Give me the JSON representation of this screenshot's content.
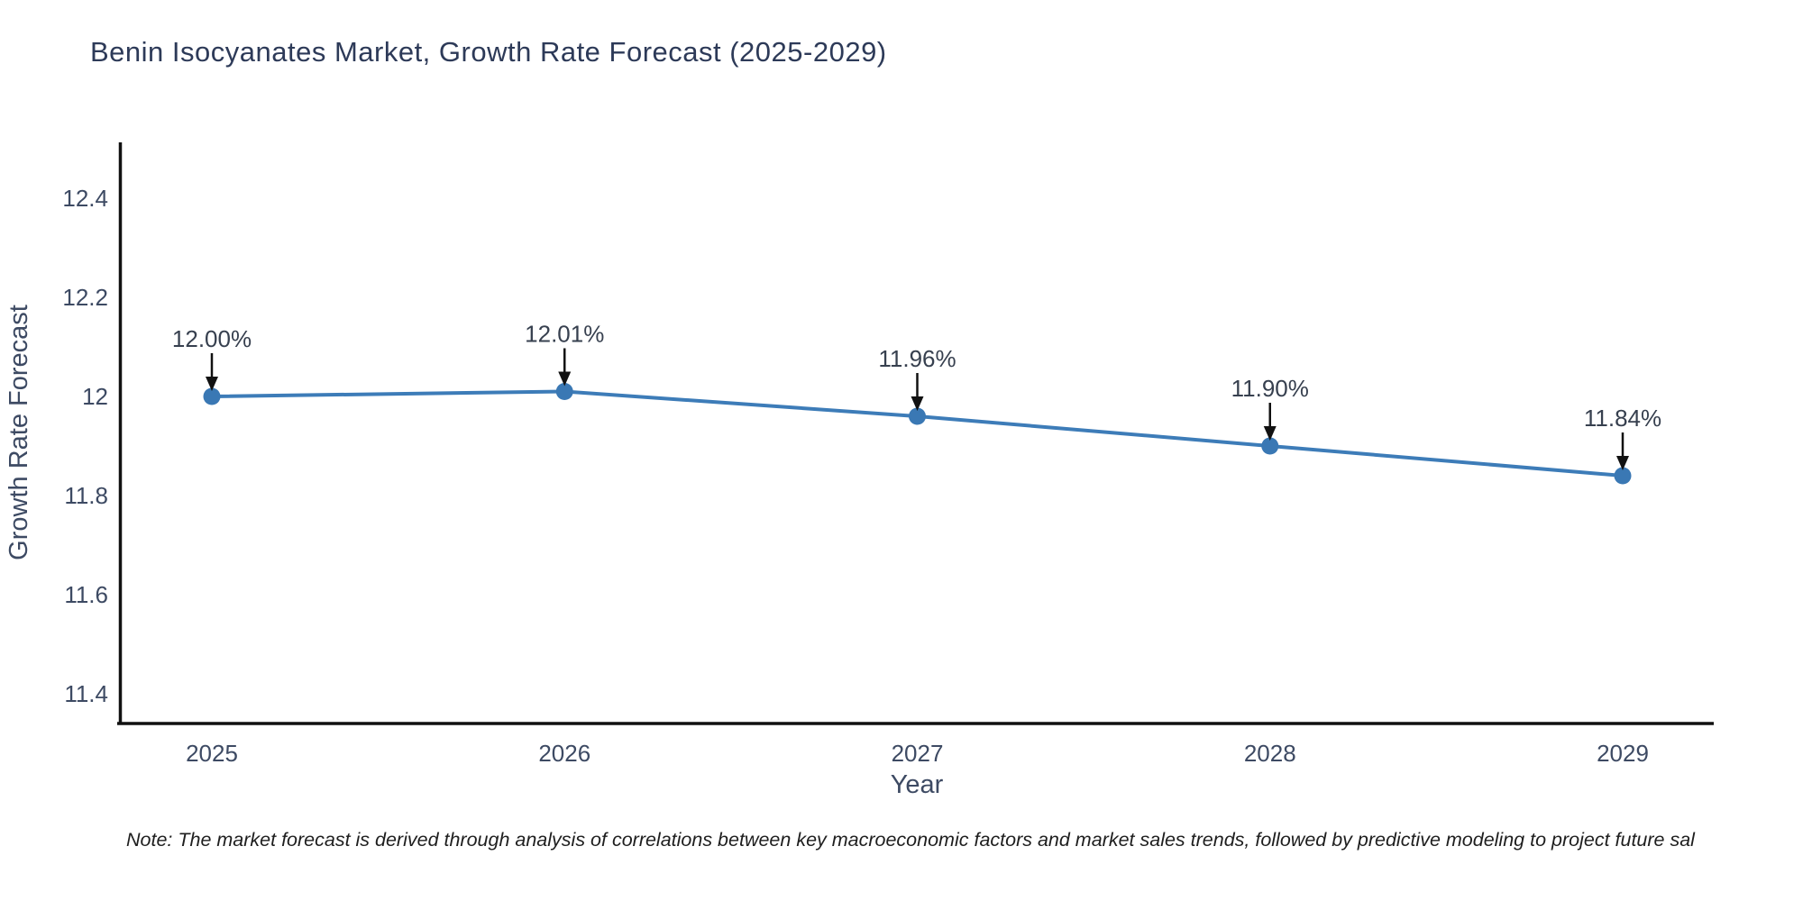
{
  "chart_data": {
    "type": "line",
    "title": "Benin Isocyanates Market, Growth Rate Forecast (2025-2029)",
    "xlabel": "Year",
    "ylabel": "Growth Rate Forecast",
    "x": [
      2025,
      2026,
      2027,
      2028,
      2029
    ],
    "y": [
      12.0,
      12.01,
      11.96,
      11.9,
      11.84
    ],
    "point_labels": [
      "12.00%",
      "12.01%",
      "11.96%",
      "11.90%",
      "11.84%"
    ],
    "xtick_labels": [
      "2025",
      "2026",
      "2027",
      "2028",
      "2029"
    ],
    "yticks": [
      11.4,
      11.6,
      11.8,
      12,
      12.2,
      12.4
    ],
    "ytick_labels": [
      "11.4",
      "11.6",
      "11.8",
      "12",
      "12.2",
      "12.4"
    ],
    "ylim": [
      11.34,
      12.51
    ],
    "grid": false,
    "legend": false,
    "annotations_have_arrows": true,
    "colors": {
      "line": "#3d7cb8",
      "marker": "#3a78b4",
      "arrow": "#111111",
      "axis": "#111111",
      "tick_text": "#3d4a63",
      "annotation_text": "#37404f",
      "title_text": "#2d3a58",
      "note_text": "#1e1e1e"
    }
  },
  "footnote": {
    "text": "Note: The market forecast is derived through analysis of correlations between key macroeconomic factors and market sales trends, followed by predictive modeling to project future sal"
  }
}
